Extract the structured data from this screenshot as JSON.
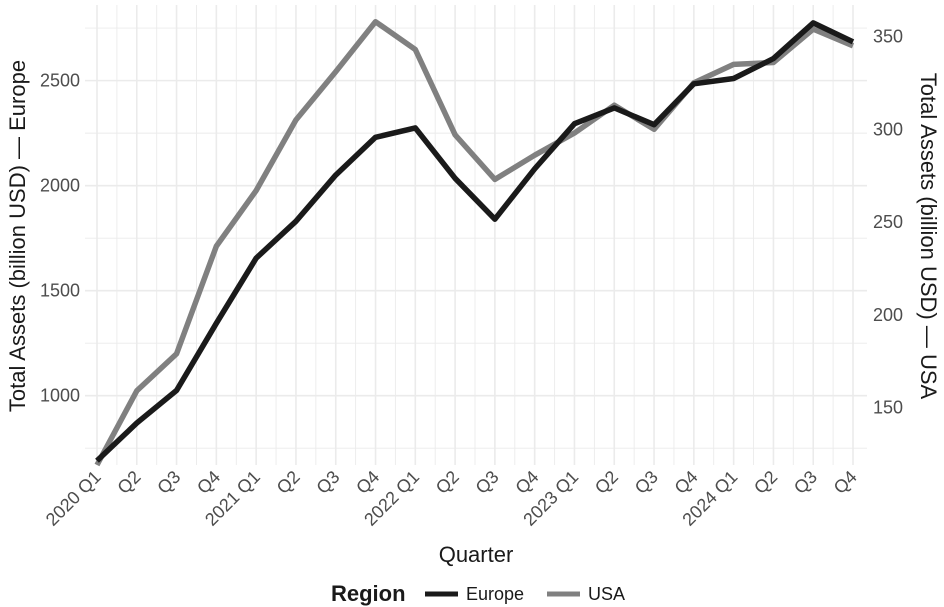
{
  "chart_data": {
    "type": "line",
    "xlabel": "Quarter",
    "ylabel_left": "Total Assets (billion USD) — Europe",
    "ylabel_right": "Total Assets (billion USD) — USA",
    "categories": [
      "2020 Q1",
      "Q2",
      "Q3",
      "Q4",
      "2021 Q1",
      "Q2",
      "Q3",
      "Q4",
      "2022 Q1",
      "Q2",
      "Q3",
      "Q4",
      "2023 Q1",
      "Q2",
      "Q3",
      "Q4",
      "2024 Q1",
      "Q2",
      "Q3",
      "Q4"
    ],
    "ylim_left": [
      670,
      2860
    ],
    "ylim_right": [
      119,
      367
    ],
    "yticks_left": [
      1000,
      1500,
      2000,
      2500
    ],
    "yticks_right": [
      150,
      200,
      250,
      300,
      350
    ],
    "grid": true,
    "legend_position": "bottom",
    "legend_title": "Region",
    "series": [
      {
        "name": "Europe",
        "axis": "left",
        "color": "#1a1a1a",
        "values": [
          690,
          870,
          1025,
          1345,
          1655,
          1830,
          2050,
          2230,
          2275,
          2035,
          1840,
          2080,
          2295,
          2370,
          2290,
          2485,
          2510,
          2605,
          2775,
          2685
        ]
      },
      {
        "name": "USA",
        "axis": "right",
        "color": "#808080",
        "values": [
          119,
          159,
          179,
          237,
          267,
          305,
          331,
          358,
          343,
          297,
          273,
          286,
          298,
          313,
          300,
          325,
          335,
          336,
          354,
          345
        ]
      }
    ]
  }
}
